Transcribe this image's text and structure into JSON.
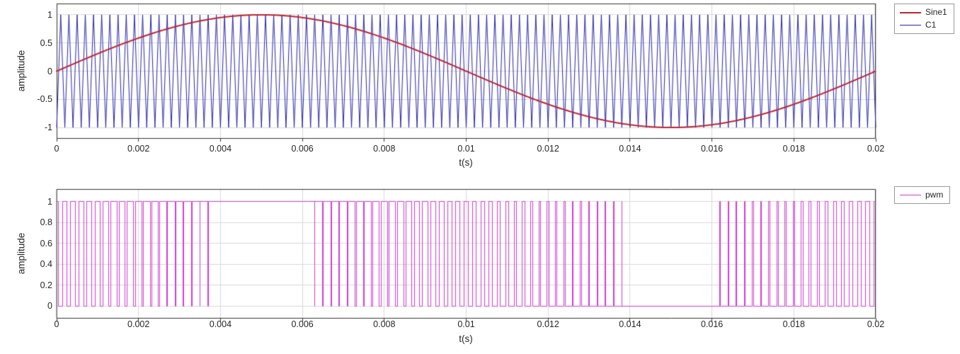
{
  "figure": {
    "background_color": "#ffffff",
    "axis_color": "#333333",
    "grid_color": "#d9d9d9",
    "tick_text_color": "#262626",
    "legend_border_color": "#999999"
  },
  "chart_data": [
    {
      "type": "line",
      "title": "",
      "xlabel": "t(s)",
      "ylabel": "amplitude",
      "xlim": [
        0,
        0.02
      ],
      "ylim": [
        -1.2,
        1.2
      ],
      "grid": true,
      "xtick_values": [
        0,
        0.002,
        0.004,
        0.006,
        0.008,
        0.01,
        0.012,
        0.014,
        0.016,
        0.018,
        0.02
      ],
      "xtick_labels": [
        "0",
        "0.002",
        "0.004",
        "0.006",
        "0.008",
        "0.01",
        "0.012",
        "0.014",
        "0.016",
        "0.018",
        "0.02"
      ],
      "ytick_values": [
        -1,
        -0.5,
        0,
        0.5,
        1
      ],
      "ytick_labels": [
        "-1",
        "-0.5",
        "0",
        "0.5",
        "1"
      ],
      "legend_position": "outside-top-right",
      "legend": [
        {
          "label": "Sine1",
          "color": "#BF2430",
          "line_width": 2
        },
        {
          "label": "C1",
          "color": "#2626AE",
          "line_width": 1
        }
      ],
      "series": [
        {
          "name": "Sine1",
          "waveform": "sine",
          "frequency_hz": 50,
          "amplitude": 1,
          "phase_deg": 0,
          "color": "#BF2430",
          "line_width": 2
        },
        {
          "name": "C1",
          "waveform": "triangle",
          "frequency_hz": 5000,
          "amplitude": 1,
          "start_value": -1,
          "color": "#2626AE",
          "line_width": 1
        }
      ]
    },
    {
      "type": "line",
      "title": "",
      "xlabel": "t(s)",
      "ylabel": "amplitude",
      "xlim": [
        0,
        0.02
      ],
      "ylim": [
        -0.12,
        1.12
      ],
      "grid": true,
      "xtick_values": [
        0,
        0.002,
        0.004,
        0.006,
        0.008,
        0.01,
        0.012,
        0.014,
        0.016,
        0.018,
        0.02
      ],
      "xtick_labels": [
        "0",
        "0.002",
        "0.004",
        "0.006",
        "0.008",
        "0.01",
        "0.012",
        "0.014",
        "0.016",
        "0.018",
        "0.02"
      ],
      "ytick_values": [
        0,
        0.2,
        0.4,
        0.6,
        0.8,
        1
      ],
      "ytick_labels": [
        "0",
        "0.2",
        "0.4",
        "0.6",
        "0.8",
        "1"
      ],
      "legend_position": "outside-top-right",
      "legend": [
        {
          "label": "pwm",
          "color": "#D23CD2",
          "line_width": 1
        }
      ],
      "series": [
        {
          "name": "pwm",
          "waveform": "pwm_comparator",
          "modulating": "Sine1",
          "carrier": "C1",
          "high_level": 1,
          "low_level": 0,
          "color": "#D23CD2",
          "line_width": 1
        }
      ]
    }
  ]
}
